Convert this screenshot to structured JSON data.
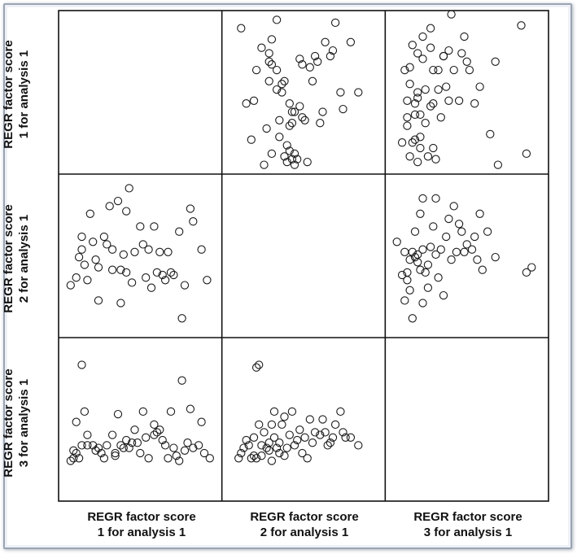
{
  "chart_data": {
    "type": "scatter",
    "variables": [
      "REGR factor score\n1 for analysis 1",
      "REGR factor score\n2 for analysis 1",
      "REGR factor score\n3 for analysis 1"
    ],
    "marker": "hollow-circle",
    "marker_color": "#1a1a1a",
    "grid": false,
    "ranges": {
      "v1": [
        -2.2,
        3.2
      ],
      "v2": [
        -2.6,
        3.3
      ],
      "v3": [
        -1.6,
        4.2
      ]
    },
    "panels": {
      "r1c2": {
        "x_var": 2,
        "y_var": 1,
        "points": [
          [
            -2.1,
            2.8
          ],
          [
            -1.9,
            0.1
          ],
          [
            -1.6,
            0.2
          ],
          [
            -1.7,
            -1.2
          ],
          [
            -1.5,
            1.3
          ],
          [
            -1.3,
            2.1
          ],
          [
            -1.2,
            -2.1
          ],
          [
            -1.1,
            -0.8
          ],
          [
            -1.0,
            1.6
          ],
          [
            -1.0,
            1.9
          ],
          [
            -1.0,
            0.9
          ],
          [
            -0.9,
            2.4
          ],
          [
            -0.9,
            -1.7
          ],
          [
            -0.9,
            1.5
          ],
          [
            -0.7,
            3.1
          ],
          [
            -0.7,
            0.6
          ],
          [
            -0.7,
            1.3
          ],
          [
            -0.6,
            -1.1
          ],
          [
            -0.6,
            -0.5
          ],
          [
            -0.5,
            0.8
          ],
          [
            -0.5,
            0.5
          ],
          [
            -0.4,
            0.9
          ],
          [
            -0.4,
            -1.8
          ],
          [
            -0.3,
            -1.4
          ],
          [
            -0.3,
            -2.0
          ],
          [
            -0.2,
            -1.6
          ],
          [
            -0.2,
            0.1
          ],
          [
            -0.2,
            -0.7
          ],
          [
            -0.1,
            -0.2
          ],
          [
            -0.1,
            -0.6
          ],
          [
            -0.1,
            -1.9
          ],
          [
            0.0,
            -2.1
          ],
          [
            0.0,
            -1.7
          ],
          [
            0.0,
            -0.2
          ],
          [
            0.1,
            -1.9
          ],
          [
            0.2,
            1.7
          ],
          [
            0.2,
            0.0
          ],
          [
            0.3,
            1.5
          ],
          [
            0.3,
            -0.4
          ],
          [
            0.4,
            -0.5
          ],
          [
            0.5,
            -2.0
          ],
          [
            0.6,
            1.4
          ],
          [
            0.7,
            0.9
          ],
          [
            0.8,
            1.8
          ],
          [
            0.9,
            1.6
          ],
          [
            1.0,
            -0.6
          ],
          [
            1.1,
            -0.2
          ],
          [
            1.2,
            2.3
          ],
          [
            1.4,
            1.8
          ],
          [
            1.5,
            2.0
          ],
          [
            1.6,
            3.0
          ],
          [
            1.8,
            0.5
          ],
          [
            1.9,
            -0.1
          ],
          [
            2.2,
            2.3
          ],
          [
            2.5,
            0.5
          ]
        ]
      },
      "r1c3": {
        "x_var": 3,
        "y_var": 1,
        "points": [
          [
            -1.2,
            -1.3
          ],
          [
            -1.1,
            1.3
          ],
          [
            -1.0,
            0.2
          ],
          [
            -1.0,
            -0.4
          ],
          [
            -1.0,
            -0.7
          ],
          [
            -0.9,
            1.4
          ],
          [
            -0.9,
            0.8
          ],
          [
            -0.9,
            -1.8
          ],
          [
            -0.8,
            2.2
          ],
          [
            -0.8,
            -1.3
          ],
          [
            -0.7,
            -0.3
          ],
          [
            -0.7,
            0.1
          ],
          [
            -0.7,
            -1.2
          ],
          [
            -0.6,
            1.9
          ],
          [
            -0.6,
            0.5
          ],
          [
            -0.6,
            0.3
          ],
          [
            -0.6,
            -2.0
          ],
          [
            -0.5,
            -1.1
          ],
          [
            -0.5,
            -1.5
          ],
          [
            -0.5,
            -0.3
          ],
          [
            -0.4,
            2.5
          ],
          [
            -0.4,
            1.7
          ],
          [
            -0.3,
            0.6
          ],
          [
            -0.3,
            -0.6
          ],
          [
            -0.2,
            -1.8
          ],
          [
            -0.1,
            2.8
          ],
          [
            -0.1,
            2.1
          ],
          [
            -0.1,
            0.0
          ],
          [
            0.0,
            1.3
          ],
          [
            0.0,
            0.1
          ],
          [
            0.0,
            -1.5
          ],
          [
            0.1,
            -1.9
          ],
          [
            0.2,
            0.6
          ],
          [
            0.2,
            1.3
          ],
          [
            0.3,
            -0.4
          ],
          [
            0.4,
            1.8
          ],
          [
            0.4,
            1.8
          ],
          [
            0.5,
            0.7
          ],
          [
            0.6,
            0.2
          ],
          [
            0.6,
            2.0
          ],
          [
            0.7,
            3.3
          ],
          [
            0.8,
            1.3
          ],
          [
            1.0,
            0.2
          ],
          [
            1.1,
            1.9
          ],
          [
            1.2,
            2.5
          ],
          [
            1.3,
            1.6
          ],
          [
            1.4,
            1.3
          ],
          [
            1.6,
            0.1
          ],
          [
            1.8,
            0.7
          ],
          [
            2.2,
            -1.0
          ],
          [
            2.4,
            1.6
          ],
          [
            2.5,
            -2.1
          ],
          [
            3.4,
            2.9
          ],
          [
            3.6,
            -1.7
          ]
        ]
      },
      "r2c1": {
        "x_var": 1,
        "y_var": 2,
        "points": [
          [
            -2.0,
            -0.8
          ],
          [
            -1.8,
            -0.5
          ],
          [
            -1.7,
            0.3
          ],
          [
            -1.6,
            1.1
          ],
          [
            -1.6,
            0.6
          ],
          [
            -1.5,
            0.0
          ],
          [
            -1.4,
            -0.6
          ],
          [
            -1.3,
            2.0
          ],
          [
            -1.2,
            0.9
          ],
          [
            -1.1,
            0.2
          ],
          [
            -1.0,
            -0.1
          ],
          [
            -1.0,
            -1.4
          ],
          [
            -0.8,
            1.1
          ],
          [
            -0.7,
            0.8
          ],
          [
            -0.6,
            2.3
          ],
          [
            -0.5,
            0.6
          ],
          [
            -0.5,
            -0.2
          ],
          [
            -0.3,
            2.5
          ],
          [
            -0.2,
            -0.2
          ],
          [
            -0.2,
            -1.5
          ],
          [
            -0.1,
            0.4
          ],
          [
            0.0,
            -0.3
          ],
          [
            0.0,
            2.1
          ],
          [
            0.1,
            3.0
          ],
          [
            0.2,
            -0.7
          ],
          [
            0.3,
            0.5
          ],
          [
            0.5,
            1.5
          ],
          [
            0.6,
            0.8
          ],
          [
            0.7,
            -0.5
          ],
          [
            0.8,
            0.6
          ],
          [
            0.9,
            -0.9
          ],
          [
            1.0,
            1.5
          ],
          [
            1.1,
            -0.3
          ],
          [
            1.2,
            0.5
          ],
          [
            1.3,
            -0.4
          ],
          [
            1.4,
            -0.6
          ],
          [
            1.5,
            0.5
          ],
          [
            1.6,
            -0.3
          ],
          [
            1.7,
            -0.4
          ],
          [
            1.9,
            1.3
          ],
          [
            2.0,
            -2.1
          ],
          [
            2.1,
            -0.8
          ],
          [
            2.3,
            2.2
          ],
          [
            2.4,
            1.7
          ],
          [
            2.7,
            0.6
          ],
          [
            2.9,
            -0.6
          ]
        ]
      },
      "r2c3": {
        "x_var": 3,
        "y_var": 2,
        "points": [
          [
            -1.4,
            0.9
          ],
          [
            -1.2,
            -0.4
          ],
          [
            -1.1,
            -1.4
          ],
          [
            -1.1,
            0.5
          ],
          [
            -1.0,
            -0.6
          ],
          [
            -1.0,
            -0.3
          ],
          [
            -0.9,
            0.2
          ],
          [
            -0.9,
            -1.0
          ],
          [
            -0.8,
            0.5
          ],
          [
            -0.8,
            -2.1
          ],
          [
            -0.7,
            0.3
          ],
          [
            -0.7,
            1.3
          ],
          [
            -0.6,
            0.4
          ],
          [
            -0.6,
            0.1
          ],
          [
            -0.5,
            2.0
          ],
          [
            -0.5,
            -0.2
          ],
          [
            -0.4,
            2.6
          ],
          [
            -0.4,
            0.6
          ],
          [
            -0.4,
            -1.5
          ],
          [
            -0.3,
            -0.3
          ],
          [
            -0.2,
            0.0
          ],
          [
            -0.2,
            -0.9
          ],
          [
            -0.1,
            0.7
          ],
          [
            0.0,
            1.5
          ],
          [
            0.1,
            0.4
          ],
          [
            0.1,
            2.6
          ],
          [
            0.2,
            -0.5
          ],
          [
            0.3,
            0.6
          ],
          [
            0.4,
            -1.2
          ],
          [
            0.5,
            1.1
          ],
          [
            0.6,
            1.8
          ],
          [
            0.7,
            0.2
          ],
          [
            0.8,
            2.3
          ],
          [
            0.9,
            0.5
          ],
          [
            1.0,
            1.6
          ],
          [
            1.1,
            1.3
          ],
          [
            1.2,
            0.5
          ],
          [
            1.3,
            0.8
          ],
          [
            1.5,
            0.6
          ],
          [
            1.6,
            1.1
          ],
          [
            1.7,
            0.2
          ],
          [
            1.8,
            2.0
          ],
          [
            1.9,
            -0.2
          ],
          [
            2.1,
            1.3
          ],
          [
            2.4,
            0.3
          ],
          [
            3.6,
            -0.3
          ],
          [
            3.8,
            -0.1
          ]
        ]
      },
      "r3c1": {
        "x_var": 1,
        "y_var": 3,
        "points": [
          [
            -2.0,
            -0.3
          ],
          [
            -1.9,
            -0.2
          ],
          [
            -1.9,
            0.1
          ],
          [
            -1.8,
            0.0
          ],
          [
            -1.8,
            1.2
          ],
          [
            -1.7,
            -0.2
          ],
          [
            -1.6,
            0.3
          ],
          [
            -1.6,
            3.4
          ],
          [
            -1.5,
            1.6
          ],
          [
            -1.4,
            0.3
          ],
          [
            -1.4,
            0.7
          ],
          [
            -1.2,
            0.3
          ],
          [
            -1.1,
            0.1
          ],
          [
            -1.0,
            0.2
          ],
          [
            -0.9,
            0.0
          ],
          [
            -0.8,
            -0.2
          ],
          [
            -0.7,
            0.3
          ],
          [
            -0.5,
            0.7
          ],
          [
            -0.4,
            0.0
          ],
          [
            -0.4,
            -0.1
          ],
          [
            -0.3,
            1.5
          ],
          [
            -0.2,
            0.3
          ],
          [
            -0.1,
            0.2
          ],
          [
            0.0,
            0.5
          ],
          [
            0.1,
            0.2
          ],
          [
            0.2,
            0.4
          ],
          [
            0.3,
            0.9
          ],
          [
            0.4,
            0.4
          ],
          [
            0.5,
            0.0
          ],
          [
            0.6,
            1.6
          ],
          [
            0.7,
            0.6
          ],
          [
            0.8,
            -0.2
          ],
          [
            1.0,
            0.7
          ],
          [
            1.0,
            1.1
          ],
          [
            1.1,
            0.8
          ],
          [
            1.2,
            0.9
          ],
          [
            1.3,
            0.5
          ],
          [
            1.4,
            0.3
          ],
          [
            1.5,
            -0.2
          ],
          [
            1.6,
            1.6
          ],
          [
            1.7,
            0.2
          ],
          [
            1.8,
            -0.1
          ],
          [
            1.9,
            -0.3
          ],
          [
            2.0,
            2.8
          ],
          [
            2.1,
            0.1
          ],
          [
            2.2,
            0.4
          ],
          [
            2.3,
            1.7
          ],
          [
            2.4,
            0.2
          ],
          [
            2.6,
            0.3
          ],
          [
            2.7,
            1.2
          ],
          [
            2.8,
            0.0
          ],
          [
            3.0,
            -0.2
          ]
        ]
      },
      "r3c2": {
        "x_var": 2,
        "y_var": 3,
        "points": [
          [
            -2.2,
            -0.2
          ],
          [
            -2.1,
            0.0
          ],
          [
            -2.0,
            0.2
          ],
          [
            -1.9,
            0.5
          ],
          [
            -1.8,
            0.3
          ],
          [
            -1.7,
            -0.2
          ],
          [
            -1.6,
            -0.1
          ],
          [
            -1.6,
            0.6
          ],
          [
            -1.5,
            3.3
          ],
          [
            -1.5,
            -0.2
          ],
          [
            -1.4,
            3.4
          ],
          [
            -1.4,
            1.1
          ],
          [
            -1.3,
            0.3
          ],
          [
            -1.3,
            -0.1
          ],
          [
            -1.2,
            0.8
          ],
          [
            -1.1,
            0.2
          ],
          [
            -1.0,
            0.1
          ],
          [
            -1.0,
            0.4
          ],
          [
            -0.9,
            1.1
          ],
          [
            -0.9,
            -0.3
          ],
          [
            -0.8,
            0.6
          ],
          [
            -0.8,
            1.6
          ],
          [
            -0.7,
            0.2
          ],
          [
            -0.6,
            0.4
          ],
          [
            -0.6,
            0.0
          ],
          [
            -0.5,
            1.1
          ],
          [
            -0.4,
            1.4
          ],
          [
            -0.4,
            -0.1
          ],
          [
            -0.3,
            0.2
          ],
          [
            -0.2,
            0.7
          ],
          [
            -0.1,
            1.6
          ],
          [
            0.0,
            0.3
          ],
          [
            0.1,
            0.5
          ],
          [
            0.2,
            0.9
          ],
          [
            0.3,
            0.0
          ],
          [
            0.4,
            0.6
          ],
          [
            0.5,
            -0.2
          ],
          [
            0.6,
            1.3
          ],
          [
            0.7,
            0.4
          ],
          [
            0.8,
            0.8
          ],
          [
            1.0,
            0.7
          ],
          [
            1.1,
            1.3
          ],
          [
            1.2,
            0.8
          ],
          [
            1.3,
            0.3
          ],
          [
            1.4,
            0.4
          ],
          [
            1.5,
            0.6
          ],
          [
            1.6,
            1.1
          ],
          [
            1.8,
            1.6
          ],
          [
            1.9,
            0.8
          ],
          [
            2.0,
            0.6
          ],
          [
            2.2,
            0.6
          ],
          [
            2.5,
            0.3
          ]
        ]
      }
    }
  }
}
